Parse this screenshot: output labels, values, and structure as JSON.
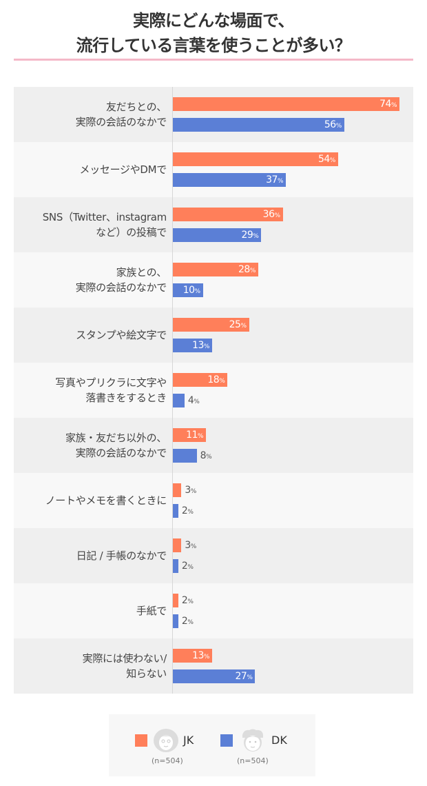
{
  "title": {
    "line1": "実際にどんな場面で、",
    "line2": "流行している言葉を使うことが多い？"
  },
  "colors": {
    "jk": "#ff7f5a",
    "dk": "#5b7fd6",
    "title_rule": "#f4b8c8",
    "row_odd": "#efefef",
    "row_even": "#f8f8f8"
  },
  "legend": {
    "jk": {
      "label": "JK",
      "n": "(n=504)",
      "icon": "girl-face-icon"
    },
    "dk": {
      "label": "DK",
      "n": "(n=504)",
      "icon": "boy-face-icon"
    }
  },
  "rows": [
    {
      "label1": "友だちとの、",
      "label2": "実際の会話のなかで",
      "jk": "74",
      "dk": "56",
      "pct": "%"
    },
    {
      "label1": "メッセージやDMで",
      "label2": "",
      "jk": "54",
      "dk": "37",
      "pct": "%"
    },
    {
      "label1": "SNS（Twitter、instagram",
      "label2": "など）の投稿で",
      "jk": "36",
      "dk": "29",
      "pct": "%"
    },
    {
      "label1": "家族との、",
      "label2": "実際の会話のなかで",
      "jk": "28",
      "dk": "10",
      "pct": "%"
    },
    {
      "label1": "スタンプや絵文字で",
      "label2": "",
      "jk": "25",
      "dk": "13",
      "pct": "%"
    },
    {
      "label1": "写真やプリクラに文字や",
      "label2": "落書きをするとき",
      "jk": "18",
      "dk": "4",
      "pct": "%"
    },
    {
      "label1": "家族・友だち以外の、",
      "label2": "実際の会話のなかで",
      "jk": "11",
      "dk": "8",
      "pct": "%"
    },
    {
      "label1": "ノートやメモを書くときに",
      "label2": "",
      "jk": "3",
      "dk": "2",
      "pct": "%"
    },
    {
      "label1": "日記 / 手帳のなかで",
      "label2": "",
      "jk": "3",
      "dk": "2",
      "pct": "%"
    },
    {
      "label1": "手紙で",
      "label2": "",
      "jk": "2",
      "dk": "2",
      "pct": "%"
    },
    {
      "label1": "実際には使わない/",
      "label2": "知らない",
      "jk": "13",
      "dk": "27",
      "pct": "%"
    }
  ],
  "chart_data": {
    "type": "bar",
    "orientation": "horizontal",
    "title": "実際にどんな場面で、流行している言葉を使うことが多い？",
    "xlabel": "",
    "ylabel": "",
    "unit": "%",
    "xlim": [
      0,
      80
    ],
    "grid": false,
    "legend_position": "bottom",
    "categories": [
      "友だちとの、実際の会話のなかで",
      "メッセージやDMで",
      "SNS（Twitter、instagramなど）の投稿で",
      "家族との、実際の会話のなかで",
      "スタンプや絵文字で",
      "写真やプリクラに文字や落書きをするとき",
      "家族・友だち以外の、実際の会話のなかで",
      "ノートやメモを書くときに",
      "日記 / 手帳のなかで",
      "手紙で",
      "実際には使わない/知らない"
    ],
    "series": [
      {
        "name": "JK (n=504)",
        "color": "#ff7f5a",
        "values": [
          74,
          54,
          36,
          28,
          25,
          18,
          11,
          3,
          3,
          2,
          13
        ]
      },
      {
        "name": "DK (n=504)",
        "color": "#5b7fd6",
        "values": [
          56,
          37,
          29,
          10,
          13,
          4,
          8,
          2,
          2,
          2,
          27
        ]
      }
    ]
  }
}
